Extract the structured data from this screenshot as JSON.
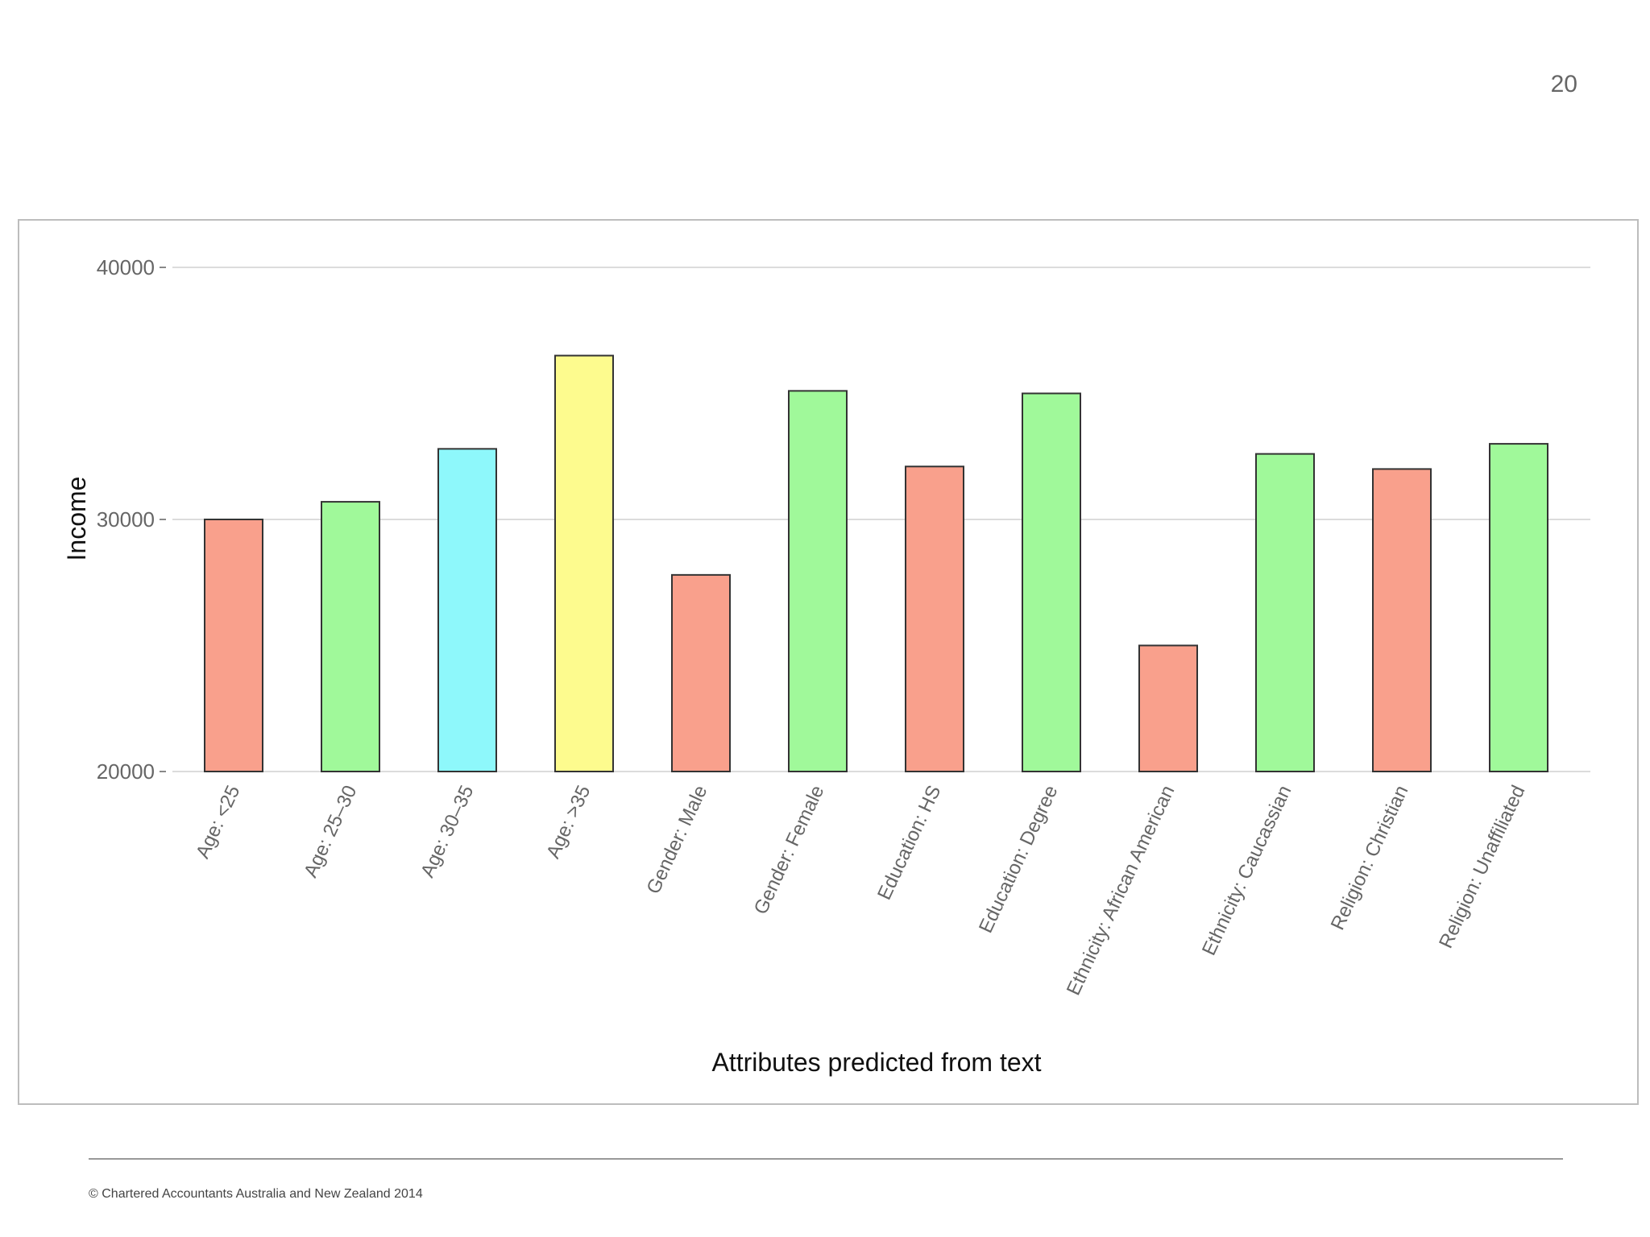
{
  "page_number": "20",
  "footer": {
    "copyright": "© Chartered Accountants Australia and New Zealand 2014"
  },
  "colors": {
    "red": "#f9a08c",
    "green": "#a0f99a",
    "cyan": "#8ef8fb",
    "yellow": "#fdfb8e",
    "gridline": "#dcdcdc",
    "bar_stroke": "#333333",
    "tick_text": "#666666"
  },
  "chart_data": {
    "type": "bar",
    "title": "",
    "xlabel": "Attributes predicted from text",
    "ylabel": "Income",
    "ylim": [
      20000,
      40000
    ],
    "yticks": [
      20000,
      30000,
      40000
    ],
    "ytick_labels": [
      "20000",
      "30000",
      "40000"
    ],
    "grid": true,
    "categories": [
      "Age: <25",
      "Age: 25–30",
      "Age: 30–35",
      "Age: >35",
      "Gender: Male",
      "Gender: Female",
      "Education: HS",
      "Education: Degree",
      "Ethnicity: African American",
      "Ethnicity: Caucassian",
      "Religion: Christian",
      "Religion: Unaffiliated"
    ],
    "values": [
      30000,
      30700,
      32800,
      36500,
      27800,
      35100,
      32100,
      35000,
      25000,
      32600,
      32000,
      33000
    ],
    "bar_colors": [
      "red",
      "green",
      "cyan",
      "yellow",
      "red",
      "green",
      "red",
      "green",
      "red",
      "green",
      "red",
      "green"
    ]
  }
}
